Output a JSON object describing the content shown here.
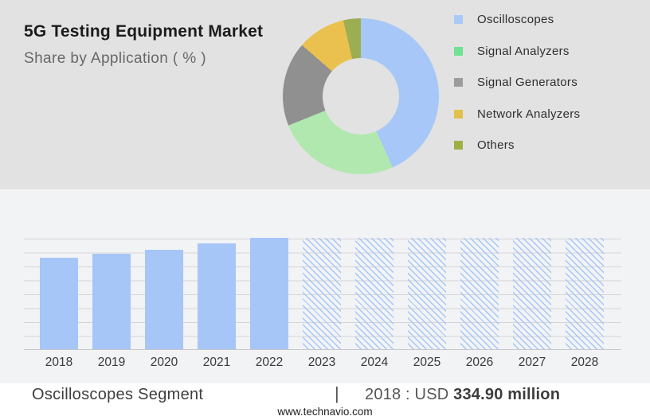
{
  "colors": {
    "bg_top": "#e2e2e2",
    "bg_chart": "#f2f3f5",
    "bg_foot": "#ffffff",
    "bar": "#a6c6f7",
    "grid": "#d5d5d7",
    "grid_strong": "#c7c7c9",
    "hole": "#e2e2e2"
  },
  "header": {
    "title": "5G Testing Equipment Market",
    "subtitle": "Share by Application ( % )"
  },
  "legend": {
    "items": [
      {
        "label": "Oscilloscopes",
        "color": "#a9c9f9"
      },
      {
        "label": "Signal Analyzers",
        "color": "#6fe391"
      },
      {
        "label": "Signal Generators",
        "color": "#9c9c9c"
      },
      {
        "label": "Network Analyzers",
        "color": "#e3c04b"
      },
      {
        "label": "Others",
        "color": "#9db044"
      }
    ]
  },
  "chart_data": [
    {
      "id": "application-share-donut",
      "type": "pie",
      "subtype": "donut",
      "title": "5G Testing Equipment Market",
      "subtitle": "Share by Application ( % )",
      "legend_position": "right",
      "donut_hole_ratio": 0.49,
      "slices": [
        {
          "label": "Oscilloscopes",
          "pct": 43.3,
          "deg": 156,
          "color": "#a6c7f8"
        },
        {
          "label": "Signal Analyzers",
          "pct": 25.6,
          "deg": 92,
          "color": "#b1e8af"
        },
        {
          "label": "Signal Generators",
          "pct": 17.5,
          "deg": 63,
          "color": "#909090"
        },
        {
          "label": "Network Analyzers",
          "pct": 10.0,
          "deg": 36,
          "color": "#eac14e"
        },
        {
          "label": "Others",
          "pct": 3.6,
          "deg": 13,
          "color": "#9dae52"
        }
      ]
    },
    {
      "id": "oscilloscopes-segment-bars",
      "type": "bar",
      "title": "Oscilloscopes Segment",
      "xlabel": "",
      "ylabel": "",
      "grid": "horizontal, 8 intervals, no y-axis tick labels",
      "categories": [
        "2018",
        "2019",
        "2020",
        "2021",
        "2022",
        "2023",
        "2024",
        "2025",
        "2026",
        "2027",
        "2028"
      ],
      "series": [
        {
          "name": "Oscilloscopes segment market size",
          "height_pct_of_plot": [
            82.4,
            85.7,
            89.5,
            94.8,
            100,
            100,
            100,
            100,
            100,
            100,
            100
          ],
          "values_usd_million_est": [
            334.9,
            348.4,
            363.9,
            385.4,
            406.3,
            null,
            null,
            null,
            null,
            null,
            null
          ],
          "bar_styles": [
            "solid",
            "solid",
            "solid",
            "solid",
            "solid",
            "hatched",
            "hatched",
            "hatched",
            "hatched",
            "hatched",
            "hatched"
          ]
        }
      ],
      "bar_color": "#a6c6f7",
      "annotation": "2018 : USD 334.90 million",
      "note": "2023-2028 forecast bars drawn full height with diagonal hatch pattern"
    }
  ],
  "footnote": {
    "segment_label": "Oscilloscopes Segment",
    "separator": "|",
    "stat_prefix": "2018 : USD ",
    "stat_value": "334.90 million"
  },
  "footer": {
    "website": "www.technavio.com"
  }
}
